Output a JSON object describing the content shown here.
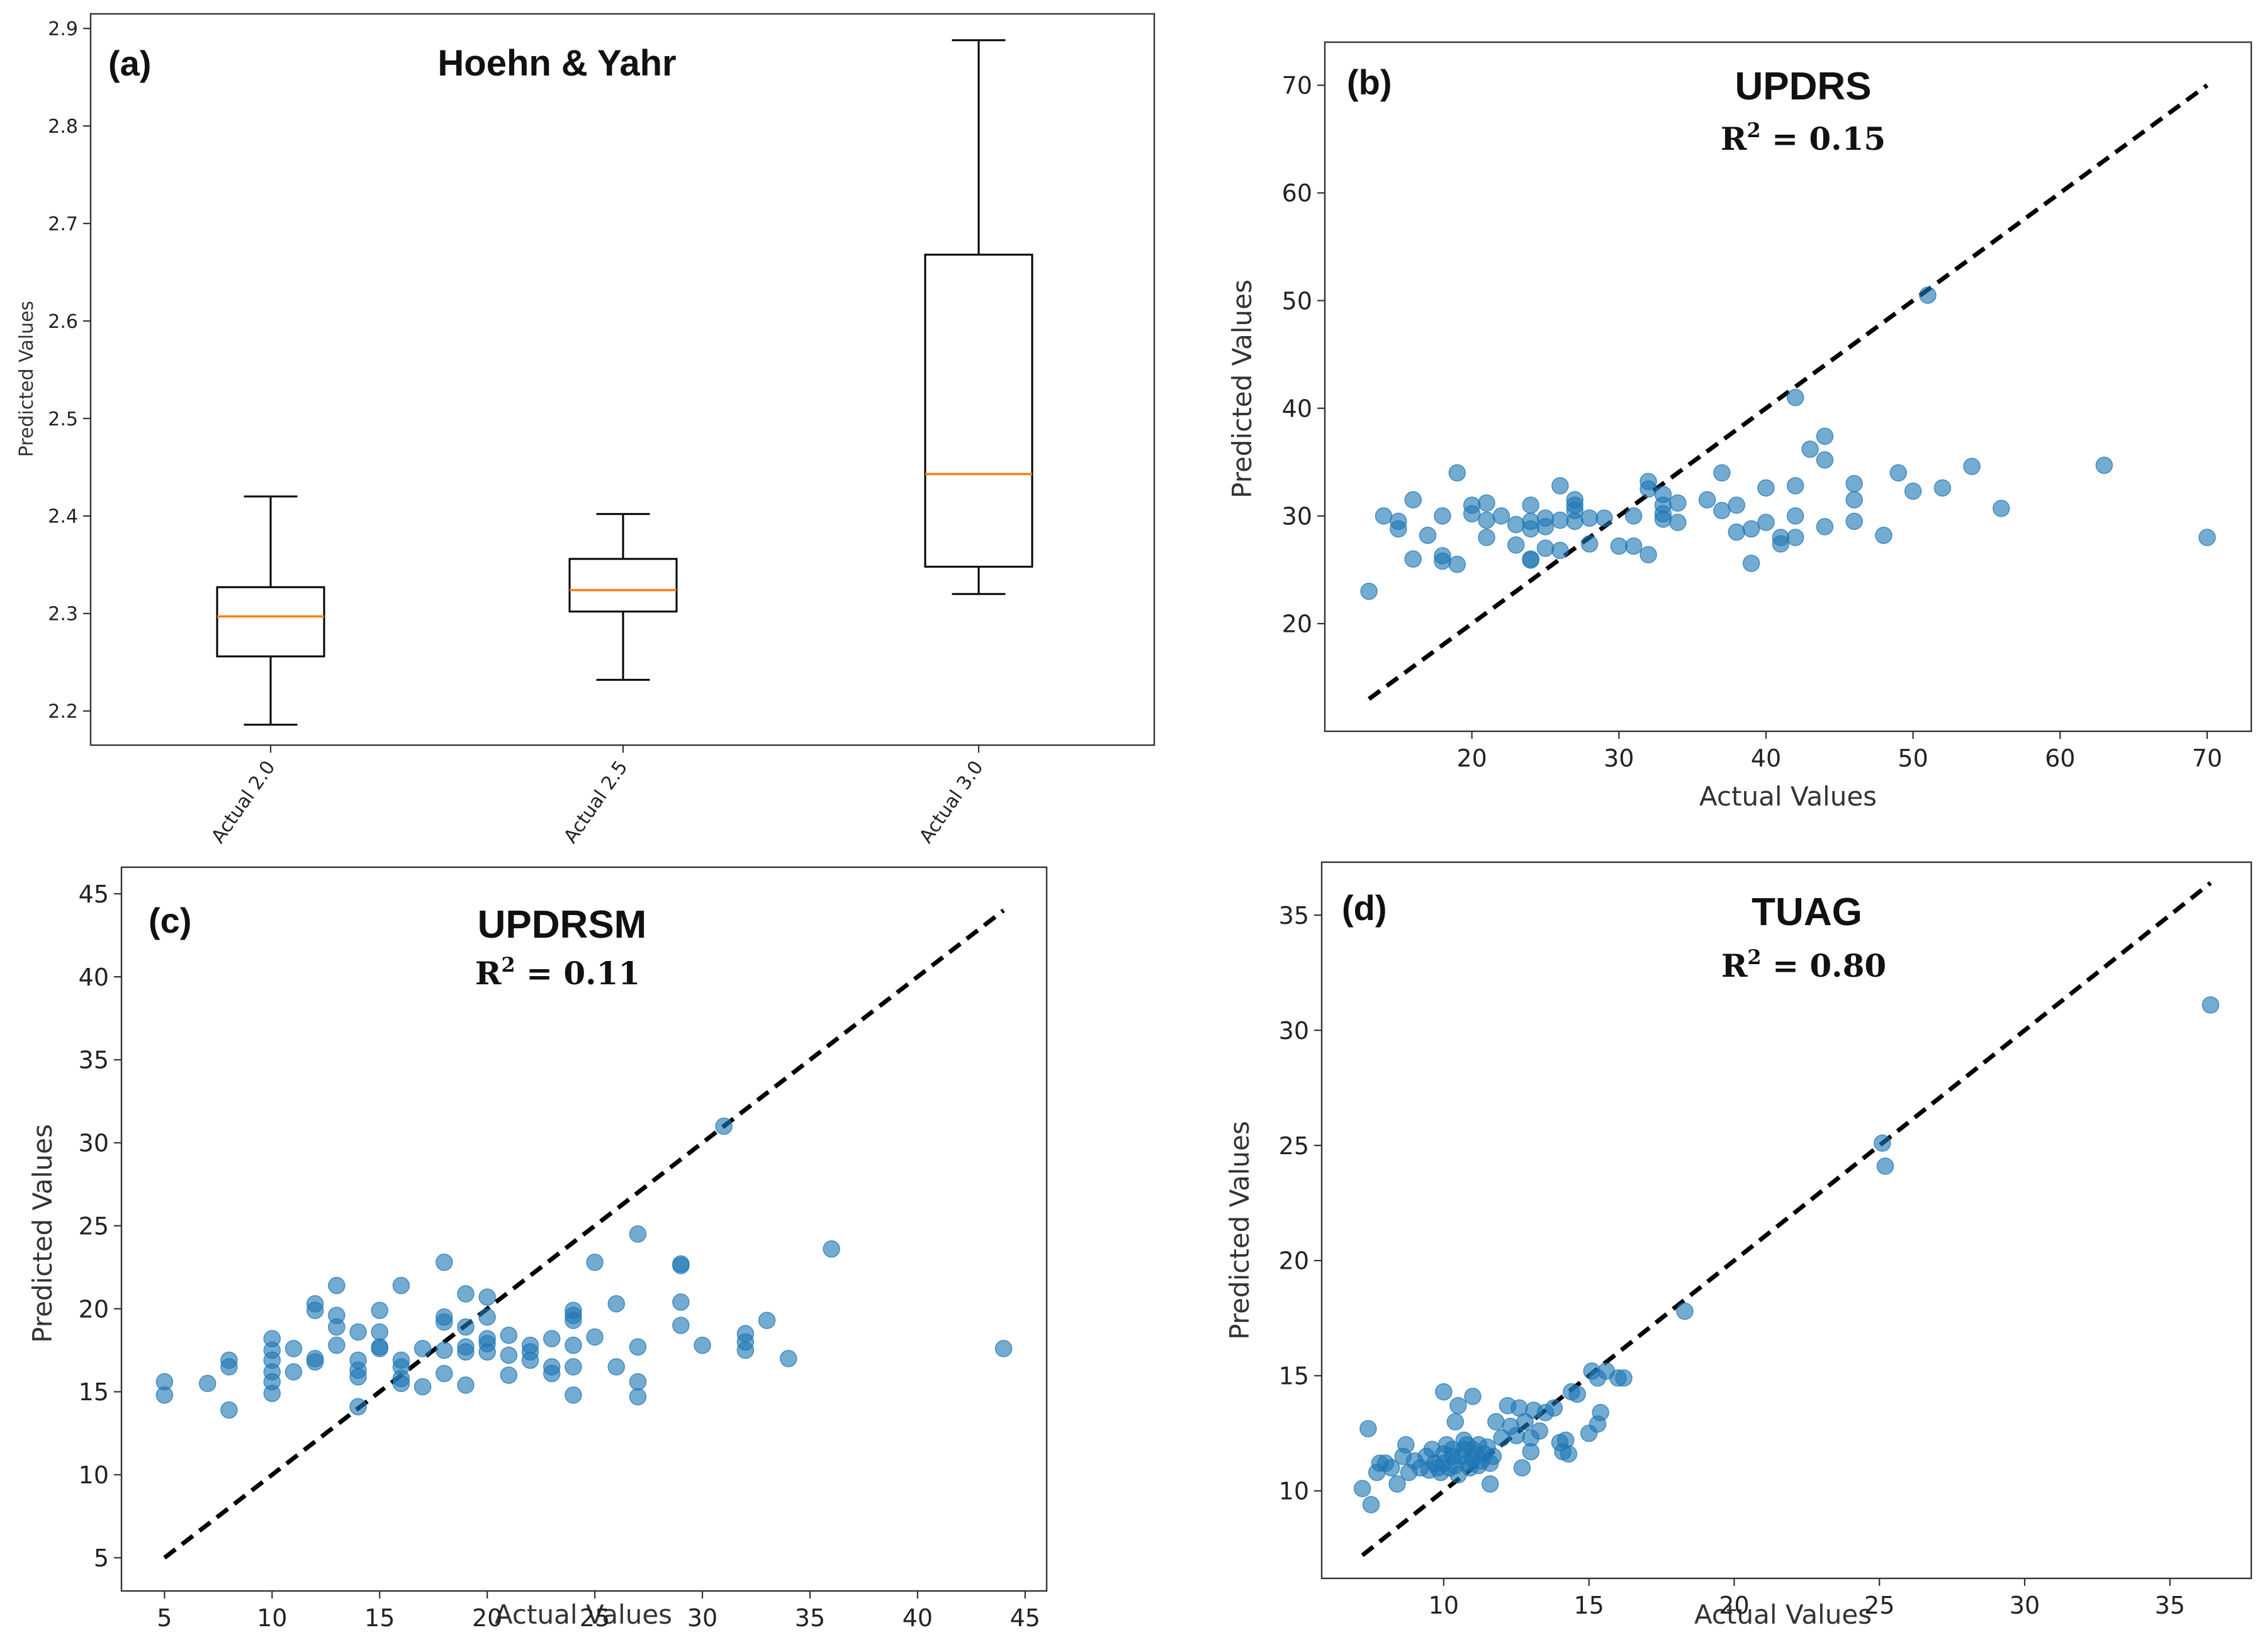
{
  "chart_data": [
    {
      "id": "a",
      "type": "box",
      "panel_label": "(a)",
      "title": "Hoehn & Yahr",
      "xlabel": "",
      "ylabel": "Predicted Values",
      "ylim": [
        2.165,
        2.915
      ],
      "yticks": [
        2.2,
        2.3,
        2.4,
        2.5,
        2.6,
        2.7,
        2.8,
        2.9
      ],
      "categories": [
        "Actual 2.0",
        "Actual 2.5",
        "Actual 3.0"
      ],
      "boxes": [
        {
          "category": "Actual 2.0",
          "whisker_low": 2.186,
          "q1": 2.256,
          "median": 2.297,
          "q3": 2.327,
          "whisker_high": 2.42
        },
        {
          "category": "Actual 2.5",
          "whisker_low": 2.232,
          "q1": 2.302,
          "median": 2.324,
          "q3": 2.356,
          "whisker_high": 2.402
        },
        {
          "category": "Actual 3.0",
          "whisker_low": 2.32,
          "q1": 2.348,
          "median": 2.443,
          "q3": 2.668,
          "whisker_high": 2.888
        }
      ],
      "colors": {
        "median": "#ff7f0e",
        "box": "#000000"
      }
    },
    {
      "id": "b",
      "type": "scatter",
      "panel_label": "(b)",
      "title": "UPDRS",
      "r2_label": "R",
      "r2_sup": "2",
      "r2_value": " = 0.15",
      "xlabel": "Actual Values",
      "ylabel": "Predicted Values",
      "xlim": [
        10,
        73
      ],
      "ylim": [
        10,
        74
      ],
      "xticks": [
        20,
        30,
        40,
        50,
        60,
        70
      ],
      "yticks": [
        20,
        30,
        40,
        50,
        60,
        70
      ],
      "identity_line": [
        [
          13,
          13
        ],
        [
          70,
          70
        ]
      ],
      "points": [
        [
          13,
          23
        ],
        [
          14,
          30
        ],
        [
          15,
          29.5
        ],
        [
          15,
          28.8
        ],
        [
          16,
          31.5
        ],
        [
          16,
          26
        ],
        [
          17,
          28.2
        ],
        [
          18,
          30
        ],
        [
          18,
          26.3
        ],
        [
          18,
          25.8
        ],
        [
          19,
          25.5
        ],
        [
          19,
          34
        ],
        [
          20,
          30.2
        ],
        [
          20,
          31
        ],
        [
          21,
          31.2
        ],
        [
          21,
          28
        ],
        [
          21,
          29.6
        ],
        [
          22,
          30
        ],
        [
          23,
          29.2
        ],
        [
          23,
          27.3
        ],
        [
          24,
          31
        ],
        [
          24,
          29.5
        ],
        [
          24,
          28.8
        ],
        [
          24,
          26
        ],
        [
          24,
          25.9
        ],
        [
          25,
          29.8
        ],
        [
          25,
          29
        ],
        [
          25,
          27
        ],
        [
          26,
          32.8
        ],
        [
          26,
          29.6
        ],
        [
          26,
          26.8
        ],
        [
          27,
          31.5
        ],
        [
          27,
          30.5
        ],
        [
          27,
          29.5
        ],
        [
          27,
          31
        ],
        [
          28,
          29.8
        ],
        [
          28,
          27.4
        ],
        [
          29,
          29.8
        ],
        [
          30,
          27.2
        ],
        [
          31,
          30
        ],
        [
          31,
          27.2
        ],
        [
          32,
          33.2
        ],
        [
          32,
          32.5
        ],
        [
          32,
          26.4
        ],
        [
          33,
          32
        ],
        [
          33,
          31
        ],
        [
          33,
          30.2
        ],
        [
          33,
          29.7
        ],
        [
          34,
          31.2
        ],
        [
          34,
          29.4
        ],
        [
          36,
          31.5
        ],
        [
          37,
          34
        ],
        [
          37,
          30.5
        ],
        [
          38,
          31
        ],
        [
          38,
          28.5
        ],
        [
          39,
          28.8
        ],
        [
          39,
          25.6
        ],
        [
          40,
          32.6
        ],
        [
          40,
          29.4
        ],
        [
          41,
          28
        ],
        [
          41,
          27.4
        ],
        [
          42,
          41
        ],
        [
          42,
          32.8
        ],
        [
          42,
          30
        ],
        [
          42,
          28
        ],
        [
          43,
          36.2
        ],
        [
          44,
          37.4
        ],
        [
          44,
          35.2
        ],
        [
          44,
          29
        ],
        [
          46,
          33
        ],
        [
          46,
          31.5
        ],
        [
          46,
          29.5
        ],
        [
          48,
          28.2
        ],
        [
          49,
          34
        ],
        [
          50,
          32.3
        ],
        [
          51,
          50.5
        ],
        [
          52,
          32.6
        ],
        [
          54,
          34.6
        ],
        [
          56,
          30.7
        ],
        [
          63,
          34.7
        ],
        [
          70,
          28
        ]
      ]
    },
    {
      "id": "c",
      "type": "scatter",
      "panel_label": "(c)",
      "title": "UPDRSM",
      "r2_label": "R",
      "r2_sup": "2",
      "r2_value": " = 0.11",
      "xlabel": "Actual Values",
      "ylabel": "Predicted Values",
      "xlim": [
        3,
        46
      ],
      "ylim": [
        3,
        46.6
      ],
      "xticks": [
        5,
        10,
        15,
        20,
        25,
        30,
        35,
        40,
        45
      ],
      "yticks": [
        5,
        10,
        15,
        20,
        25,
        30,
        35,
        40,
        45
      ],
      "identity_line": [
        [
          5,
          5
        ],
        [
          44,
          44
        ]
      ],
      "points": [
        [
          5,
          15.6
        ],
        [
          5,
          14.8
        ],
        [
          7,
          15.5
        ],
        [
          8,
          16.9
        ],
        [
          8,
          16.5
        ],
        [
          8,
          13.9
        ],
        [
          10,
          18.2
        ],
        [
          10,
          17.5
        ],
        [
          10,
          16.9
        ],
        [
          10,
          16.2
        ],
        [
          10,
          15.6
        ],
        [
          10,
          14.9
        ],
        [
          11,
          17.6
        ],
        [
          11,
          16.2
        ],
        [
          12,
          20.3
        ],
        [
          12,
          19.9
        ],
        [
          12,
          17
        ],
        [
          12,
          16.8
        ],
        [
          13,
          21.4
        ],
        [
          13,
          19.6
        ],
        [
          13,
          18.9
        ],
        [
          13,
          17.8
        ],
        [
          14,
          18.6
        ],
        [
          14,
          16.9
        ],
        [
          14,
          16.3
        ],
        [
          14,
          15.9
        ],
        [
          14,
          14.1
        ],
        [
          15,
          19.9
        ],
        [
          15,
          18.6
        ],
        [
          15,
          17.7
        ],
        [
          15,
          17.6
        ],
        [
          16,
          21.4
        ],
        [
          16,
          16.9
        ],
        [
          16,
          16.5
        ],
        [
          16,
          15.8
        ],
        [
          16,
          15.5
        ],
        [
          17,
          17.6
        ],
        [
          17,
          15.3
        ],
        [
          18,
          22.8
        ],
        [
          18,
          19.5
        ],
        [
          18,
          19.2
        ],
        [
          18,
          17.5
        ],
        [
          18,
          16.1
        ],
        [
          19,
          20.9
        ],
        [
          19,
          18.9
        ],
        [
          19,
          17.7
        ],
        [
          19,
          17.4
        ],
        [
          19,
          15.4
        ],
        [
          20,
          20.7
        ],
        [
          20,
          19.5
        ],
        [
          20,
          18.2
        ],
        [
          20,
          17.9
        ],
        [
          20,
          17.4
        ],
        [
          21,
          18.4
        ],
        [
          21,
          17.2
        ],
        [
          21,
          16
        ],
        [
          22,
          17.8
        ],
        [
          22,
          17.4
        ],
        [
          22,
          16.9
        ],
        [
          23,
          18.2
        ],
        [
          23,
          16.5
        ],
        [
          23,
          16.1
        ],
        [
          24,
          19.9
        ],
        [
          24,
          19.6
        ],
        [
          24,
          19.3
        ],
        [
          24,
          17.8
        ],
        [
          24,
          16.5
        ],
        [
          24,
          14.8
        ],
        [
          25,
          22.8
        ],
        [
          25,
          18.3
        ],
        [
          26,
          20.3
        ],
        [
          26,
          16.5
        ],
        [
          27,
          24.5
        ],
        [
          27,
          17.7
        ],
        [
          27,
          15.6
        ],
        [
          27,
          14.7
        ],
        [
          29,
          22.7
        ],
        [
          29,
          22.6
        ],
        [
          29,
          20.4
        ],
        [
          29,
          19
        ],
        [
          30,
          17.8
        ],
        [
          31,
          31
        ],
        [
          32,
          18.5
        ],
        [
          32,
          18
        ],
        [
          32,
          17.5
        ],
        [
          33,
          19.3
        ],
        [
          34,
          17
        ],
        [
          36,
          23.6
        ],
        [
          44,
          17.6
        ]
      ]
    },
    {
      "id": "d",
      "type": "scatter",
      "panel_label": "(d)",
      "title": "TUAG",
      "r2_label": "R",
      "r2_sup": "2",
      "r2_value": " = 0.80",
      "xlabel": "Actual Values",
      "ylabel": "Predicted Values",
      "xlim": [
        5.8,
        37.8
      ],
      "ylim": [
        6.2,
        37.3
      ],
      "xticks": [
        10,
        15,
        20,
        25,
        30,
        35
      ],
      "yticks": [
        10,
        15,
        20,
        25,
        30,
        35
      ],
      "identity_line": [
        [
          7.2,
          7.2
        ],
        [
          36.4,
          36.4
        ]
      ],
      "points": [
        [
          7.2,
          10.1
        ],
        [
          7.4,
          12.7
        ],
        [
          7.5,
          9.4
        ],
        [
          7.7,
          10.8
        ],
        [
          7.8,
          11.2
        ],
        [
          8,
          11.2
        ],
        [
          8.2,
          11
        ],
        [
          8.4,
          10.3
        ],
        [
          8.6,
          11.5
        ],
        [
          8.7,
          12
        ],
        [
          8.8,
          10.8
        ],
        [
          9,
          11.3
        ],
        [
          9.2,
          11
        ],
        [
          9.4,
          11.5
        ],
        [
          9.5,
          10.9
        ],
        [
          9.6,
          11.8
        ],
        [
          9.7,
          11.2
        ],
        [
          9.8,
          11
        ],
        [
          9.9,
          10.8
        ],
        [
          10,
          11.6
        ],
        [
          10,
          11.2
        ],
        [
          10,
          14.3
        ],
        [
          10.1,
          12
        ],
        [
          10.2,
          11
        ],
        [
          10.3,
          11.5
        ],
        [
          10.3,
          11.8
        ],
        [
          10.4,
          11.1
        ],
        [
          10.4,
          13
        ],
        [
          10.5,
          10.7
        ],
        [
          10.5,
          13.7
        ],
        [
          10.6,
          11.5
        ],
        [
          10.7,
          12.2
        ],
        [
          10.7,
          11.8
        ],
        [
          10.8,
          11.2
        ],
        [
          10.8,
          12
        ],
        [
          10.9,
          11
        ],
        [
          11,
          11.8
        ],
        [
          11,
          11.4
        ],
        [
          11,
          14.1
        ],
        [
          11.1,
          11.6
        ],
        [
          11.2,
          12
        ],
        [
          11.2,
          11.1
        ],
        [
          11.3,
          11.3
        ],
        [
          11.4,
          11.6
        ],
        [
          11.5,
          11.9
        ],
        [
          11.6,
          11.2
        ],
        [
          11.6,
          10.3
        ],
        [
          11.7,
          11.5
        ],
        [
          11.8,
          13
        ],
        [
          12,
          12.3
        ],
        [
          12.2,
          13.7
        ],
        [
          12.3,
          12.8
        ],
        [
          12.5,
          12.4
        ],
        [
          12.6,
          13.6
        ],
        [
          12.7,
          11
        ],
        [
          12.8,
          13
        ],
        [
          13,
          12.3
        ],
        [
          13,
          11.7
        ],
        [
          13.1,
          13.5
        ],
        [
          13.3,
          12.6
        ],
        [
          13.5,
          13.4
        ],
        [
          13.8,
          13.6
        ],
        [
          14,
          12.1
        ],
        [
          14.1,
          11.7
        ],
        [
          14.2,
          12.2
        ],
        [
          14.3,
          11.6
        ],
        [
          14.4,
          14.3
        ],
        [
          14.6,
          14.2
        ],
        [
          15,
          12.5
        ],
        [
          15.1,
          15.2
        ],
        [
          15.3,
          12.9
        ],
        [
          15.3,
          14.9
        ],
        [
          15.4,
          13.4
        ],
        [
          15.6,
          15.2
        ],
        [
          16,
          14.9
        ],
        [
          16.2,
          14.9
        ],
        [
          18.3,
          17.8
        ],
        [
          25.1,
          25.1
        ],
        [
          25.2,
          24.1
        ],
        [
          36.4,
          31.1
        ]
      ]
    }
  ]
}
